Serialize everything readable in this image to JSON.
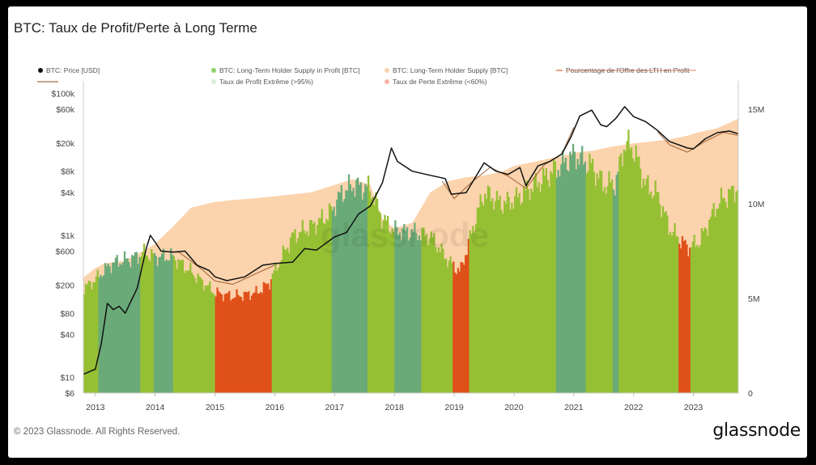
{
  "page": {
    "title": "BTC: Taux de Profit/Perte à Long Terme",
    "footer": "© 2023 Glassnode. All Rights Reserved.",
    "brand": "glassnode",
    "watermark": "glassnode"
  },
  "chart_data": {
    "type": "area",
    "title": "BTC: Taux de Profit/Perte à Long Terme",
    "legend": [
      {
        "label": "BTC: Price [USD]",
        "color": "#111111",
        "marker": "dot"
      },
      {
        "label": "BTC: Long-Term Holder Supply in Profit [BTC]",
        "color": "#8fd16a",
        "marker": "dot"
      },
      {
        "label": "BTC: Long-Term Holder Supply [BTC]",
        "color": "#fbd3ad",
        "marker": "dot"
      },
      {
        "label": "Pourcentage de l'Offre des LTH en Profit",
        "color": "#e8805a",
        "marker": "line"
      },
      {
        "label": "Taux de Profit Extrême (>95%)",
        "color": "#d8eedb",
        "marker": "dot"
      },
      {
        "label": "Taux de Perte Extrême (<60%)",
        "color": "#f6b3a6",
        "marker": "dot"
      }
    ],
    "legend_row2_first_marker": "line",
    "x_ticks": [
      "2013",
      "2014",
      "2015",
      "2016",
      "2017",
      "2018",
      "2019",
      "2020",
      "2021",
      "2022",
      "2023"
    ],
    "x_range": [
      2012.8,
      2023.75
    ],
    "y_left": {
      "scale": "log",
      "range": [
        6,
        150000
      ],
      "ticks": [
        "$100k",
        "$60k",
        "$20k",
        "$8k",
        "$4k",
        "$1k",
        "$600",
        "$200",
        "$80",
        "$40",
        "$10",
        "$6"
      ],
      "tick_values": [
        100000,
        60000,
        20000,
        8000,
        4000,
        1000,
        600,
        200,
        80,
        40,
        10,
        6
      ]
    },
    "y_right": {
      "scale": "linear",
      "range": [
        0,
        16500000
      ],
      "ticks": [
        "15M",
        "10M",
        "5M",
        "0"
      ],
      "tick_values": [
        15000000,
        10000000,
        5000000,
        0
      ]
    },
    "series": [
      {
        "name": "BTC: Long-Term Holder Supply [BTC]",
        "type": "area",
        "x": [
          2012.8,
          2013.0,
          2013.15,
          2013.5,
          2013.8,
          2014.0,
          2014.3,
          2014.6,
          2015.0,
          2015.3,
          2015.7,
          2016.0,
          2016.3,
          2016.6,
          2016.9,
          2017.1,
          2017.3,
          2017.6,
          2017.8,
          2018.0,
          2018.3,
          2018.6,
          2018.9,
          2019.2,
          2019.5,
          2019.8,
          2020.0,
          2020.3,
          2020.6,
          2020.9,
          2021.0,
          2021.3,
          2021.6,
          2021.8,
          2022.0,
          2022.3,
          2022.6,
          2022.9,
          2023.1,
          2023.4,
          2023.75
        ],
        "values": [
          6100000,
          6600000,
          6850000,
          7000000,
          7500000,
          7900000,
          8800000,
          9800000,
          10100000,
          10200000,
          10300000,
          10400000,
          10500000,
          10600000,
          10900000,
          11100000,
          11300000,
          11000000,
          9200000,
          8700000,
          9000000,
          10600000,
          11200000,
          11400000,
          11500000,
          11700000,
          12000000,
          12200000,
          12400000,
          12600000,
          12700000,
          12800000,
          13000000,
          13100000,
          13200000,
          13300000,
          13400000,
          13600000,
          13800000,
          14000000,
          14500000
        ]
      },
      {
        "name": "BTC: Long-Term Holder Supply in Profit [BTC]",
        "type": "area",
        "x": [
          2012.8,
          2013.0,
          2013.15,
          2013.3,
          2013.6,
          2013.8,
          2014.0,
          2014.3,
          2014.6,
          2015.0,
          2015.3,
          2015.7,
          2015.9,
          2016.1,
          2016.3,
          2016.6,
          2016.9,
          2017.1,
          2017.3,
          2017.6,
          2017.8,
          2018.0,
          2018.3,
          2018.6,
          2018.9,
          2019.1,
          2019.3,
          2019.5,
          2019.8,
          2020.0,
          2020.3,
          2020.6,
          2020.9,
          2021.0,
          2021.3,
          2021.5,
          2021.7,
          2021.85,
          2022.0,
          2022.2,
          2022.4,
          2022.6,
          2022.9,
          2023.1,
          2023.4,
          2023.75
        ],
        "values": [
          5500000,
          6000000,
          6500000,
          6900000,
          7100000,
          7400000,
          7200000,
          7200000,
          6400000,
          5300000,
          5100000,
          5300000,
          5800000,
          7100000,
          8300000,
          8800000,
          9400000,
          10500000,
          11000000,
          10800000,
          9200000,
          8600000,
          8500000,
          8300000,
          7000000,
          6400000,
          8600000,
          10600000,
          10000000,
          10200000,
          10900000,
          11600000,
          12300000,
          12600000,
          12000000,
          11000000,
          11100000,
          13200000,
          12900000,
          11000000,
          10500000,
          8700000,
          7700000,
          8000000,
          10000000,
          10900000
        ]
      },
      {
        "name": "BTC: Price [USD]",
        "type": "line",
        "x": [
          2012.8,
          2012.9,
          2013.0,
          2013.1,
          2013.2,
          2013.3,
          2013.4,
          2013.5,
          2013.6,
          2013.7,
          2013.85,
          2013.92,
          2014.0,
          2014.1,
          2014.3,
          2014.5,
          2014.7,
          2014.9,
          2015.0,
          2015.2,
          2015.5,
          2015.8,
          2016.0,
          2016.3,
          2016.5,
          2016.7,
          2017.0,
          2017.2,
          2017.4,
          2017.6,
          2017.8,
          2017.95,
          2018.05,
          2018.3,
          2018.6,
          2018.85,
          2018.95,
          2019.2,
          2019.5,
          2019.7,
          2019.9,
          2020.1,
          2020.2,
          2020.4,
          2020.6,
          2020.8,
          2020.95,
          2021.1,
          2021.3,
          2021.45,
          2021.55,
          2021.7,
          2021.85,
          2022.0,
          2022.2,
          2022.4,
          2022.6,
          2022.9,
          2023.0,
          2023.2,
          2023.4,
          2023.6,
          2023.75
        ],
        "values": [
          11,
          12,
          13,
          30,
          110,
          90,
          100,
          80,
          120,
          180,
          650,
          1000,
          800,
          600,
          580,
          600,
          380,
          320,
          260,
          230,
          260,
          380,
          400,
          420,
          650,
          620,
          950,
          1100,
          2000,
          2600,
          5500,
          17000,
          11000,
          8000,
          7000,
          6300,
          3800,
          4000,
          10500,
          8000,
          7200,
          9000,
          5000,
          9500,
          11000,
          14000,
          24000,
          48000,
          58000,
          36000,
          34000,
          44000,
          65000,
          47000,
          40000,
          30000,
          21000,
          17000,
          16500,
          23000,
          28000,
          29500,
          27000
        ]
      },
      {
        "name": "Pourcentage de l'Offre des LTH en Profit",
        "type": "line",
        "unit": "ratio",
        "x": [
          2014.1,
          2014.4,
          2014.8,
          2015.0,
          2015.3,
          2015.7,
          2016.0,
          2018.8,
          2019.0,
          2019.3,
          2019.6,
          2019.9,
          2020.2,
          2020.5,
          2020.8,
          2021.0,
          2022.4,
          2022.6,
          2022.9,
          2023.2,
          2023.5,
          2023.75
        ],
        "values": [
          0.9,
          0.86,
          0.74,
          0.65,
          0.6,
          0.62,
          0.8,
          0.7,
          0.62,
          0.74,
          0.86,
          0.8,
          0.74,
          0.8,
          0.9,
          0.98,
          0.82,
          0.7,
          0.65,
          0.74,
          0.86,
          0.8
        ]
      }
    ],
    "regimes": {
      "extreme_profit": [
        [
          2013.05,
          2013.75
        ],
        [
          2013.97,
          2014.3
        ],
        [
          2016.95,
          2017.55
        ],
        [
          2018.0,
          2018.45
        ],
        [
          2020.7,
          2021.2
        ],
        [
          2021.65,
          2021.75
        ]
      ],
      "extreme_loss": [
        [
          2015.0,
          2015.95
        ],
        [
          2018.97,
          2019.25
        ],
        [
          2022.75,
          2022.95
        ]
      ]
    },
    "grid": false,
    "legend_position": "top"
  }
}
